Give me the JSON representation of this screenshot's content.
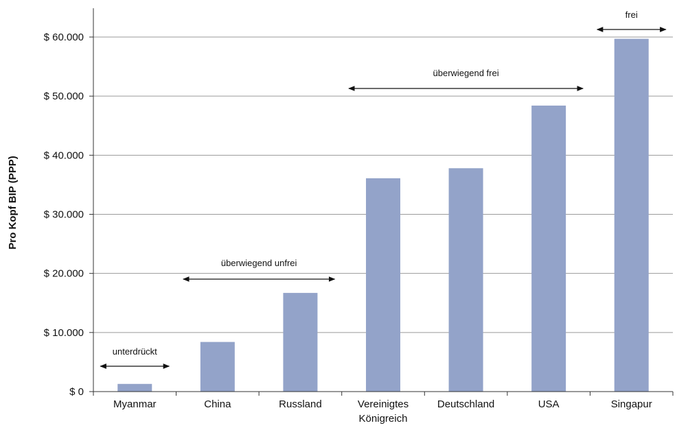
{
  "chart_data": {
    "type": "bar",
    "ylabel": "Pro Kopf BIP (PPP)",
    "xlabel": "",
    "categories": [
      [
        "Myanmar"
      ],
      [
        "China"
      ],
      [
        "Russland"
      ],
      [
        "Vereinigtes",
        "Königreich"
      ],
      [
        "Deutschland"
      ],
      [
        "USA"
      ],
      [
        "Singapur"
      ]
    ],
    "values": [
      1300,
      8400,
      16700,
      36100,
      37800,
      48400,
      59700
    ],
    "ylim": [
      0,
      60000
    ],
    "yticks": [
      0,
      10000,
      20000,
      30000,
      40000,
      50000,
      60000
    ],
    "ytick_labels": [
      "$ 0",
      "$ 10.000",
      "$ 20.000",
      "$ 30.000",
      "$ 40.000",
      "$ 50.000",
      "$ 60.000"
    ],
    "grid": true,
    "bar_color": "#93a3c9",
    "annotations": [
      {
        "label": "unterdrückt",
        "from": 0,
        "to": 0
      },
      {
        "label": "überwiegend unfrei",
        "from": 1,
        "to": 2
      },
      {
        "label": "überwiegend frei",
        "from": 3,
        "to": 5
      },
      {
        "label": "frei",
        "from": 6,
        "to": 6
      }
    ]
  }
}
